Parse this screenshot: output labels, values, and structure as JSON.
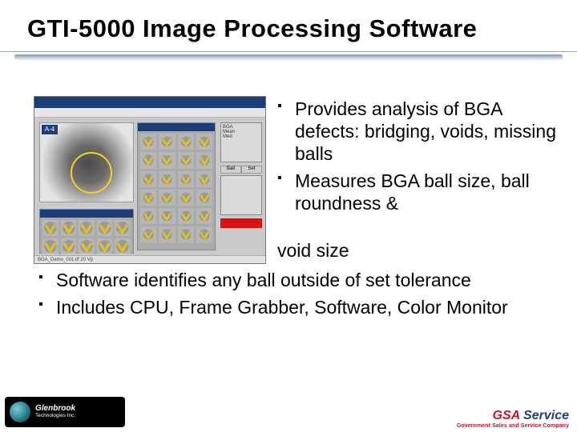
{
  "title": "GTI-5000 Image Processing Software",
  "bullets_right": [
    "Provides analysis of BGA defects: bridging, voids, missing balls",
    "Measures BGA ball size, ball roundness & "
  ],
  "trailing_fragment": "void size",
  "bullets_full": [
    "Software identifies any ball outside of set tolerance",
    "Includes CPU, Frame Grabber, Software, Color Monitor"
  ],
  "screenshot": {
    "ball_tag": "A-4",
    "grid_marker_color": "#e2c21a",
    "grid_cols": 4,
    "grid_rows": 6,
    "bottom_cols": 5,
    "bottom_rows": 2,
    "status_text": "BGA_Demo_001.tif  20 Vp"
  },
  "footer": {
    "left_name": "Glenbrook",
    "left_sub": "Technologies Inc.",
    "right_brand_1": "GSA",
    "right_brand_2": " Service",
    "right_sub": "Government Sales and Service Company"
  },
  "colors": {
    "title": "#000000",
    "accent_blue": "#1b3d7a",
    "accent_red": "#c81128",
    "ring": "#f4d31a"
  }
}
